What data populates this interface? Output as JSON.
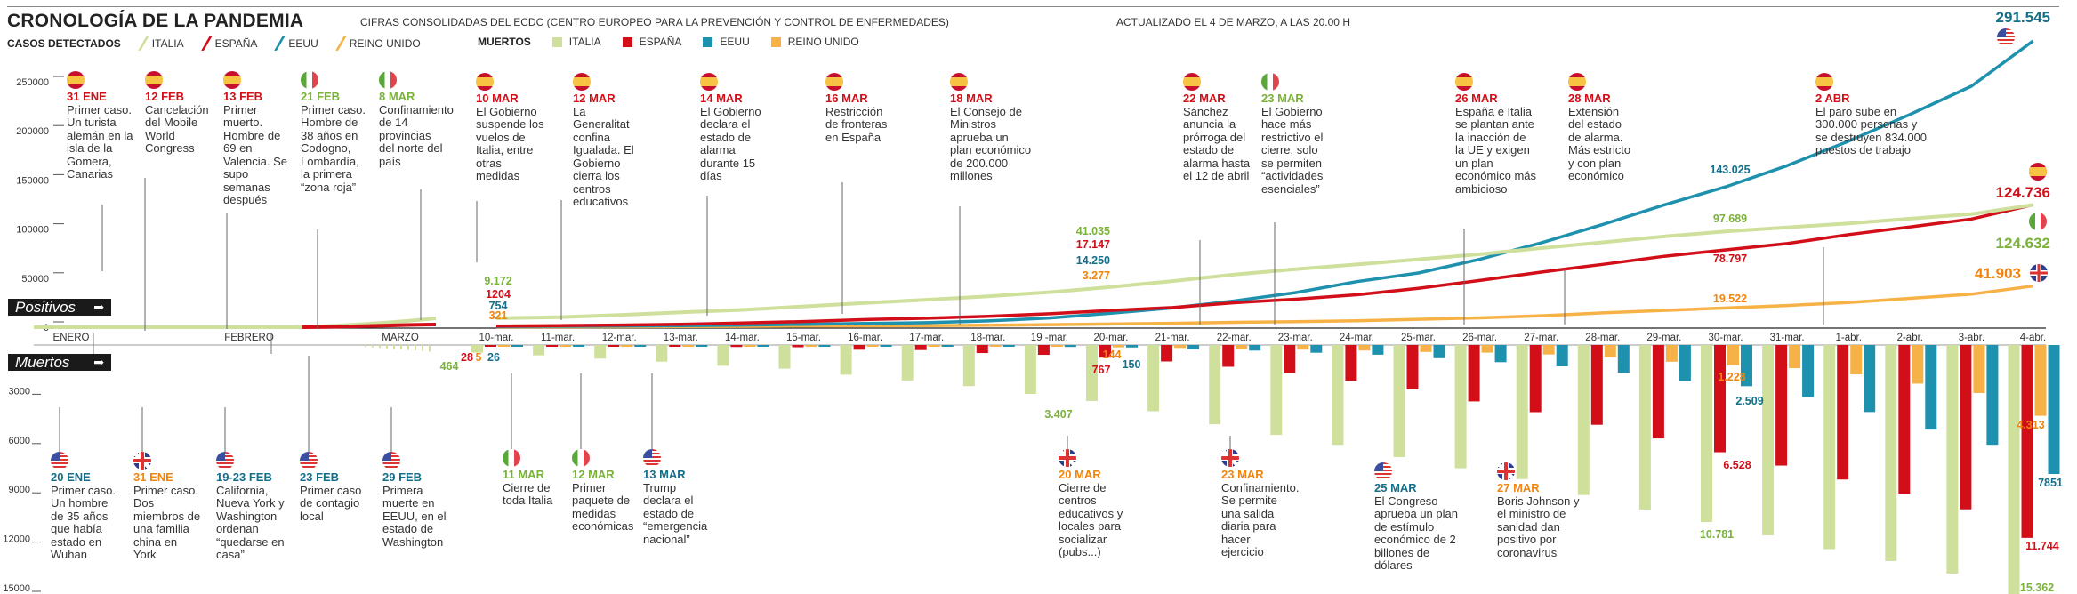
{
  "header": {
    "title": "CRONOLOGÍA DE LA PANDEMIA",
    "subtitle": "CIFRAS CONSOLIDADAS DEL ECDC (CENTRO EUROPEO PARA LA PREVENCIÓN Y CONTROL DE ENFERMEDADES)",
    "updated": "ACTUALIZADO EL 4 DE MARZO, A LAS 20.00 H"
  },
  "legend": {
    "cases_label": "CASOS DETECTADOS",
    "deaths_label": "MUERTOS",
    "countries": [
      {
        "key": "italia",
        "label": "ITALIA",
        "color": "#cfe09c"
      },
      {
        "key": "espana",
        "label": "ESPAÑA",
        "color": "#d20f19"
      },
      {
        "key": "eeuu",
        "label": "EEUU",
        "color": "#1d91ad"
      },
      {
        "key": "reino_unido",
        "label": "REINO UNIDO",
        "color": "#f7b247"
      }
    ]
  },
  "label_colors": {
    "italia": "#7ab23a",
    "espana": "#d20f19",
    "eeuu": "#156e8a",
    "reino_unido": "#f0850f"
  },
  "section_tags": {
    "positivos": "Positivos",
    "muertos": "Muertos",
    "arrow": "➡"
  },
  "chart_data": [
    {
      "type": "line",
      "title": "Casos detectados (Positivos)",
      "ylabel": "Positivos",
      "ylim": [
        0,
        250000
      ],
      "yticks": [
        "0",
        "50000",
        "100000",
        "150000",
        "200000",
        "250000"
      ],
      "period_labels": [
        "ENERO",
        "FEBRERO",
        "MARZO"
      ],
      "x": [
        "10-mar.",
        "11-mar.",
        "12-mar.",
        "13-mar.",
        "14-mar.",
        "15-mar.",
        "16-mar.",
        "17-mar.",
        "18-mar.",
        "19 -mar.",
        "20-mar.",
        "21-mar.",
        "22-mar.",
        "23-mar.",
        "24-mar.",
        "25-mar.",
        "26-mar.",
        "27-mar.",
        "28-mar.",
        "29-mar.",
        "30-mar.",
        "31-mar.",
        "1-abr.",
        "2-abr.",
        "3-abr.",
        "4-abr."
      ],
      "series": [
        {
          "name": "ITALIA",
          "key": "italia",
          "values": [
            9172,
            10149,
            12462,
            15113,
            17660,
            21157,
            24747,
            27980,
            31506,
            35713,
            41035,
            47021,
            53578,
            59138,
            63927,
            69176,
            74386,
            80589,
            86498,
            92472,
            97689,
            101739,
            105792,
            110574,
            115242,
            124632
          ]
        },
        {
          "name": "ESPAÑA",
          "key": "espana",
          "values": [
            1204,
            1639,
            2140,
            2965,
            4231,
            5753,
            7753,
            9191,
            11178,
            13716,
            17147,
            19980,
            24926,
            28572,
            33089,
            39673,
            47610,
            56188,
            64059,
            72248,
            78797,
            85195,
            94417,
            102136,
            110238,
            124736
          ]
        },
        {
          "name": "EEUU",
          "key": "eeuu",
          "values": [
            754,
            1025,
            1312,
            1663,
            2174,
            2951,
            3774,
            4661,
            6427,
            9415,
            14250,
            19624,
            26747,
            35206,
            46442,
            55231,
            69194,
            85991,
            104686,
            124665,
            143025,
            164620,
            189618,
            216721,
            245540,
            291545
          ]
        },
        {
          "name": "REINO UNIDO",
          "key": "reino_unido",
          "values": [
            321,
            382,
            456,
            590,
            798,
            1140,
            1391,
            1543,
            1950,
            2626,
            3277,
            3983,
            5018,
            5683,
            6650,
            8077,
            9529,
            11658,
            14543,
            17089,
            19522,
            22141,
            25150,
            29474,
            33718,
            41903
          ]
        }
      ],
      "annotations": [
        {
          "date": "10-mar.",
          "labels": {
            "italia": "9.172",
            "espana": "1204",
            "eeuu": "754",
            "reino_unido": "321"
          }
        },
        {
          "date": "20-mar.",
          "labels": {
            "italia": "41.035",
            "espana": "17.147",
            "eeuu": "14.250",
            "reino_unido": "3.277"
          }
        },
        {
          "date": "30-mar.",
          "labels": {
            "italia": "97.689",
            "espana": "78.797",
            "eeuu": "143.025",
            "reino_unido": "19.522"
          }
        },
        {
          "date": "4-abr.",
          "labels": {
            "italia": "124.632",
            "espana": "124.736",
            "eeuu": "291.545",
            "reino_unido": "41.903"
          }
        }
      ]
    },
    {
      "type": "bar",
      "title": "Muertos",
      "ylabel": "Muertos",
      "ylim": [
        0,
        15000
      ],
      "yticks": [
        "3000",
        "6000",
        "9000",
        "12000",
        "15000"
      ],
      "categories": [
        "10-mar.",
        "11-mar.",
        "12-mar.",
        "13-mar.",
        "14-mar.",
        "15-mar.",
        "16-mar.",
        "17-mar.",
        "18-mar.",
        "19 -mar.",
        "20-mar.",
        "21-mar.",
        "22-mar.",
        "23-mar.",
        "24-mar.",
        "25-mar.",
        "26-mar.",
        "27-mar.",
        "28-mar.",
        "29-mar.",
        "30-mar.",
        "31-mar.",
        "1-abr.",
        "2-abr.",
        "3-abr.",
        "4-abr."
      ],
      "series": [
        {
          "name": "ITALIA",
          "key": "italia",
          "values": [
            464,
            631,
            827,
            1016,
            1266,
            1441,
            1809,
            2158,
            2503,
            2978,
            3407,
            4032,
            4825,
            5476,
            6077,
            6820,
            7503,
            8165,
            9134,
            10023,
            10781,
            11591,
            12428,
            13155,
            13915,
            15362
          ]
        },
        {
          "name": "ESPAÑA",
          "key": "espana",
          "values": [
            28,
            35,
            54,
            84,
            120,
            136,
            288,
            309,
            491,
            598,
            767,
            1002,
            1326,
            1720,
            2182,
            2696,
            3434,
            4089,
            4858,
            5690,
            6528,
            7340,
            8189,
            9053,
            10003,
            11744
          ]
        },
        {
          "name": "EEUU",
          "key": "eeuu",
          "values": [
            26,
            30,
            37,
            40,
            47,
            57,
            69,
            85,
            108,
            118,
            150,
            260,
            340,
            471,
            590,
            801,
            1046,
            1301,
            1697,
            2191,
            2509,
            3170,
            4081,
            5151,
            6075,
            7851
          ]
        },
        {
          "name": "REINO UNIDO",
          "key": "reino_unido",
          "values": [
            5,
            6,
            8,
            8,
            21,
            21,
            35,
            55,
            71,
            104,
            144,
            177,
            233,
            281,
            335,
            422,
            465,
            578,
            759,
            1019,
            1228,
            1408,
            1789,
            2352,
            2921,
            4313
          ]
        }
      ],
      "annotations": [
        {
          "date": "10-mar.",
          "labels": {
            "italia": "464",
            "espana": "28",
            "reino_unido": "5",
            "eeuu": "26"
          }
        },
        {
          "date": "20-mar.",
          "labels": {
            "italia": "3.407",
            "espana": "767",
            "reino_unido": "144",
            "eeuu": "150"
          }
        },
        {
          "date": "30-mar.",
          "labels": {
            "italia": "10.781",
            "espana": "6.528",
            "reino_unido": "1.228",
            "eeuu": "2.509"
          }
        },
        {
          "date": "4-abr.",
          "labels": {
            "italia": "15.362",
            "espana": "11.744",
            "reino_unido": "4.313",
            "eeuu": "7851"
          }
        }
      ]
    }
  ],
  "events_top": [
    {
      "flag": "es",
      "date": "31 ENE",
      "text": "Primer caso. Un turista alemán en la isla de la Gomera, Canarias"
    },
    {
      "flag": "es",
      "date": "12 FEB",
      "text": "Cancelación del Mobile World Congress"
    },
    {
      "flag": "es",
      "date": "13 FEB",
      "text": "Primer muerto. Hombre de 69 en Valencia. Se supo semanas después"
    },
    {
      "flag": "it",
      "date": "21 FEB",
      "text": "Primer caso. Hombre de 38 años en Codogno, Lombardía, la primera “zona roja”"
    },
    {
      "flag": "it",
      "date": "8 MAR",
      "text": "Confinamiento de 14 provincias del norte del país"
    },
    {
      "flag": "es",
      "date": "10 MAR",
      "text": "El Gobierno suspende los vuelos de Italia, entre otras medidas"
    },
    {
      "flag": "es",
      "date": "12 MAR",
      "text": "La Generalitat confina Igualada. El Gobierno cierra los centros educativos"
    },
    {
      "flag": "es",
      "date": "14 MAR",
      "text": "El Gobierno declara el estado de alarma durante 15 días"
    },
    {
      "flag": "es",
      "date": "16 MAR",
      "text": "Restricción de fronteras en España"
    },
    {
      "flag": "es",
      "date": "18 MAR",
      "text": "El Consejo de Ministros aprueba un plan económico de 200.000 millones"
    },
    {
      "flag": "es",
      "date": "22 MAR",
      "text": "Sánchez anuncia la prórroga del estado de alarma hasta el 12 de abril"
    },
    {
      "flag": "it",
      "date": "23 MAR",
      "text": "El Gobierno hace más restrictivo el cierre, solo se permiten “actividades esenciales”"
    },
    {
      "flag": "es",
      "date": "26 MAR",
      "text": "España e Italia se plantan ante la inacción de la UE y exigen un plan económico más ambicioso"
    },
    {
      "flag": "es",
      "date": "28 MAR",
      "text": "Extensión del estado de alarma. Más estricto y con plan económico"
    },
    {
      "flag": "es",
      "date": "2 ABR",
      "text": "El paro sube en 300.000 personas y se destruyen 834.000 puestos de trabajo"
    }
  ],
  "events_bottom": [
    {
      "flag": "us",
      "date": "20 ENE",
      "text": "Primer caso. Un hombre de 35 años que había estado en Wuhan"
    },
    {
      "flag": "uk",
      "date": "31 ENE",
      "text": "Primer caso. Dos miembros de una familia china en York"
    },
    {
      "flag": "us",
      "date": "19-23 FEB",
      "text": "California, Nueva York y Washington ordenan “quedarse en casa”"
    },
    {
      "flag": "us",
      "date": "23 FEB",
      "text": "Primer caso de contagio local"
    },
    {
      "flag": "us",
      "date": "29 FEB",
      "text": "Primera muerte en EEUU, en el estado de Washington"
    },
    {
      "flag": "it",
      "date": "11 MAR",
      "text": "Cierre de toda Italia"
    },
    {
      "flag": "it",
      "date": "12 MAR",
      "text": "Primer paquete de medidas económicas"
    },
    {
      "flag": "us",
      "date": "13 MAR",
      "text": "Trump declara el estado de “emergencia nacional”"
    },
    {
      "flag": "uk",
      "date": "20 MAR",
      "text": "Cierre de centros educativos y locales para socializar (pubs...)"
    },
    {
      "flag": "uk",
      "date": "23 MAR",
      "text": "Confinamiento. Se permite una salida diaria para hacer ejercicio"
    },
    {
      "flag": "us",
      "date": "25 MAR",
      "text": "El Congreso aprueba un plan de estímulo económico de 2 billones de dólares"
    },
    {
      "flag": "uk",
      "date": "27 MAR",
      "text": "Boris Johnson y el ministro de sanidad dan positivo por coronavirus"
    }
  ]
}
